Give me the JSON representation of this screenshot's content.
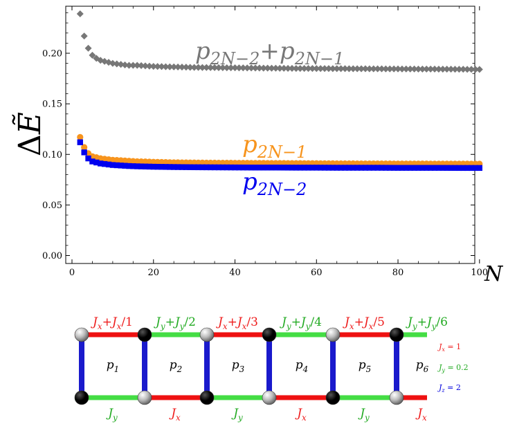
{
  "chart_data": {
    "type": "scatter",
    "xlabel": "N",
    "ylabel": "ΔẼ",
    "xlim": [
      0,
      100
    ],
    "ylim": [
      -0.005,
      0.25
    ],
    "xticks": [
      0,
      20,
      40,
      60,
      80,
      100
    ],
    "xtick_labels": [
      "0",
      "20",
      "40",
      "60",
      "80",
      "100"
    ],
    "yticks": [
      0.0,
      0.05,
      0.1,
      0.15,
      0.2
    ],
    "ytick_labels": [
      "0.00",
      "0.05",
      "0.10",
      "0.15",
      "0.20"
    ],
    "series": [
      {
        "name": "p2N-2+p2N-1",
        "label": "p2N−2+p2N−1",
        "marker": "diamond",
        "color": "#777777",
        "x": [
          2,
          3,
          4,
          5,
          6,
          7,
          8,
          9,
          10,
          12,
          14,
          16,
          18,
          20,
          25,
          30,
          35,
          40,
          45,
          50,
          55,
          60,
          65,
          70,
          75,
          80,
          85,
          90,
          95,
          100
        ],
        "values": [
          0.239,
          0.217,
          0.205,
          0.198,
          0.195,
          0.193,
          0.192,
          0.191,
          0.19,
          0.189,
          0.188,
          0.188,
          0.1875,
          0.187,
          0.1865,
          0.186,
          0.1858,
          0.1856,
          0.1854,
          0.1852,
          0.185,
          0.1849,
          0.1848,
          0.1847,
          0.1846,
          0.1845,
          0.1844,
          0.1843,
          0.1842,
          0.184
        ]
      },
      {
        "name": "p2N-1",
        "label": "p2N−1",
        "marker": "circle",
        "color": "#f7941d",
        "x": [
          2,
          3,
          4,
          5,
          6,
          7,
          8,
          9,
          10,
          12,
          14,
          16,
          18,
          20,
          25,
          30,
          35,
          40,
          45,
          50,
          55,
          60,
          65,
          70,
          75,
          80,
          85,
          90,
          95,
          100
        ],
        "values": [
          0.117,
          0.107,
          0.101,
          0.098,
          0.097,
          0.096,
          0.0955,
          0.095,
          0.0945,
          0.094,
          0.0935,
          0.093,
          0.0928,
          0.0925,
          0.092,
          0.0918,
          0.0916,
          0.0915,
          0.0914,
          0.0913,
          0.0912,
          0.0911,
          0.091,
          0.0909,
          0.0909,
          0.0908,
          0.0908,
          0.0907,
          0.0907,
          0.0906
        ]
      },
      {
        "name": "p2N-2",
        "label": "p2N−2",
        "marker": "square",
        "color": "#0000ee",
        "x": [
          2,
          3,
          4,
          5,
          6,
          7,
          8,
          9,
          10,
          12,
          14,
          16,
          18,
          20,
          25,
          30,
          35,
          40,
          45,
          50,
          55,
          60,
          65,
          70,
          75,
          80,
          85,
          90,
          95,
          100
        ],
        "values": [
          0.112,
          0.102,
          0.096,
          0.093,
          0.092,
          0.091,
          0.0905,
          0.09,
          0.0895,
          0.089,
          0.0885,
          0.0882,
          0.088,
          0.0878,
          0.0875,
          0.0873,
          0.0872,
          0.0871,
          0.087,
          0.087,
          0.0869,
          0.0869,
          0.0868,
          0.0868,
          0.0868,
          0.0867,
          0.0867,
          0.0867,
          0.0866,
          0.0866
        ]
      }
    ]
  },
  "ladder": {
    "top_labels": [
      {
        "parts": [
          {
            "t": "J",
            "s": "x",
            "c": "red"
          },
          {
            "t": "+",
            "c": "red"
          },
          {
            "t": "J",
            "s": "x",
            "c": "red"
          },
          {
            "t": "/1",
            "c": "red"
          }
        ]
      },
      {
        "parts": [
          {
            "t": "J",
            "s": "y",
            "c": "green"
          },
          {
            "t": "+",
            "c": "green"
          },
          {
            "t": "J",
            "s": "y",
            "c": "green"
          },
          {
            "t": "/2",
            "c": "green"
          }
        ]
      },
      {
        "parts": [
          {
            "t": "J",
            "s": "x",
            "c": "red"
          },
          {
            "t": "+",
            "c": "red"
          },
          {
            "t": "J",
            "s": "x",
            "c": "red"
          },
          {
            "t": "/3",
            "c": "red"
          }
        ]
      },
      {
        "parts": [
          {
            "t": "J",
            "s": "y",
            "c": "green"
          },
          {
            "t": "+",
            "c": "green"
          },
          {
            "t": "J",
            "s": "y",
            "c": "green"
          },
          {
            "t": "/4",
            "c": "green"
          }
        ]
      },
      {
        "parts": [
          {
            "t": "J",
            "s": "x",
            "c": "red"
          },
          {
            "t": "+",
            "c": "red"
          },
          {
            "t": "J",
            "s": "x",
            "c": "red"
          },
          {
            "t": "/5",
            "c": "red"
          }
        ]
      },
      {
        "parts": [
          {
            "t": "J",
            "s": "y",
            "c": "green"
          },
          {
            "t": "+",
            "c": "green"
          },
          {
            "t": "J",
            "s": "y",
            "c": "green"
          },
          {
            "t": "/6",
            "c": "green"
          }
        ]
      }
    ],
    "plaquettes": [
      "p1",
      "p2",
      "p3",
      "p4",
      "p5",
      "p6"
    ],
    "bottom_labels": [
      "Jy",
      "Jx",
      "Jy",
      "Jx",
      "Jy",
      "Jx"
    ],
    "couplings": [
      {
        "label": "Jx = 1",
        "sym": "J",
        "sub": "x",
        "rhs": " = 1",
        "color": "red"
      },
      {
        "label": "Jy = 0.2",
        "sym": "J",
        "sub": "y",
        "rhs": " = 0.2",
        "color": "green"
      },
      {
        "label": "Jz = 2",
        "sym": "J",
        "sub": "z",
        "rhs": " = 2",
        "color": "blue"
      }
    ],
    "colors": {
      "red": "#ee1c1c",
      "green": "#22aa22",
      "blue": "#0000dd",
      "bondRed": "#ee1111",
      "bondGreen": "#44dd44",
      "bondBlue": "#1a1acc"
    }
  }
}
